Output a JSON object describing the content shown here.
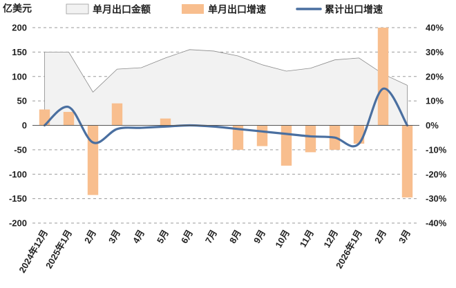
{
  "chart_data": {
    "type": "bar",
    "unit_label": "亿美元",
    "categories": [
      "2024年12月",
      "2025年1月",
      "2月",
      "3月",
      "4月",
      "5月",
      "6月",
      "7月",
      "8月",
      "9月",
      "10月",
      "11月",
      "12月",
      "2026年1月",
      "2月",
      "3月"
    ],
    "left_axis": {
      "ylim": [
        -200,
        200
      ],
      "ticks": [
        -200,
        -150,
        -100,
        -50,
        0,
        50,
        100,
        150,
        200
      ]
    },
    "right_axis": {
      "ylim": [
        -40,
        40
      ],
      "ticks": [
        -40,
        -30,
        -20,
        -10,
        0,
        10,
        20,
        30,
        40
      ],
      "tick_labels": [
        "-40%",
        "-30%",
        "-20%",
        "-10%",
        "0%",
        "10%",
        "20%",
        "30%",
        "40%"
      ]
    },
    "grid": "dashed horizontal",
    "legend": "top",
    "series": [
      {
        "name": "单月出口金额",
        "type": "area",
        "axis": "left",
        "color": "#f2f2f2",
        "values": [
          150,
          150,
          68,
          115,
          118,
          138,
          155,
          152,
          142,
          124,
          111,
          117,
          134,
          138,
          105,
          82
        ]
      },
      {
        "name": "单月出口增速",
        "type": "bar",
        "axis": "right",
        "color": "#f8be8e",
        "values": [
          6.5,
          5.5,
          -28.5,
          9.0,
          0,
          2.8,
          0,
          0,
          -10,
          -8.5,
          -16.5,
          -11.0,
          -10.0,
          -7.5,
          40,
          -29.5
        ]
      },
      {
        "name": "累计出口增速",
        "type": "line",
        "axis": "right",
        "color": "#4a6fa0",
        "values": [
          0,
          7.5,
          -7.0,
          -1.5,
          -1.0,
          -0.5,
          0,
          -0.5,
          -1.5,
          -2.5,
          -3.5,
          -4.5,
          -5.0,
          -7.5,
          15,
          0
        ]
      }
    ]
  }
}
